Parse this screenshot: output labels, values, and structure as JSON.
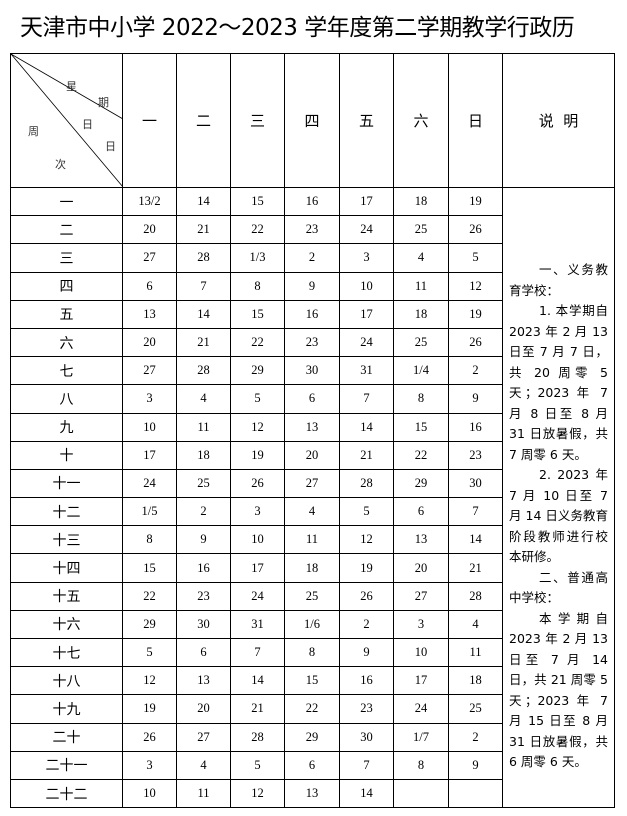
{
  "title": "天津市中小学 2022～2023 学年度第二学期教学行政历",
  "corner": {
    "top": [
      "星",
      "期"
    ],
    "middle": [
      "日",
      "日"
    ],
    "left": [
      "周",
      "次"
    ]
  },
  "weekdays": [
    "一",
    "二",
    "三",
    "四",
    "五",
    "六",
    "日"
  ],
  "notes_header": "说  明",
  "weeks": [
    {
      "label": "一",
      "days": [
        "13/2",
        "14",
        "15",
        "16",
        "17",
        "18",
        "19"
      ]
    },
    {
      "label": "二",
      "days": [
        "20",
        "21",
        "22",
        "23",
        "24",
        "25",
        "26"
      ]
    },
    {
      "label": "三",
      "days": [
        "27",
        "28",
        "1/3",
        "2",
        "3",
        "4",
        "5"
      ]
    },
    {
      "label": "四",
      "days": [
        "6",
        "7",
        "8",
        "9",
        "10",
        "11",
        "12"
      ]
    },
    {
      "label": "五",
      "days": [
        "13",
        "14",
        "15",
        "16",
        "17",
        "18",
        "19"
      ]
    },
    {
      "label": "六",
      "days": [
        "20",
        "21",
        "22",
        "23",
        "24",
        "25",
        "26"
      ]
    },
    {
      "label": "七",
      "days": [
        "27",
        "28",
        "29",
        "30",
        "31",
        "1/4",
        "2"
      ]
    },
    {
      "label": "八",
      "days": [
        "3",
        "4",
        "5",
        "6",
        "7",
        "8",
        "9"
      ]
    },
    {
      "label": "九",
      "days": [
        "10",
        "11",
        "12",
        "13",
        "14",
        "15",
        "16"
      ]
    },
    {
      "label": "十",
      "days": [
        "17",
        "18",
        "19",
        "20",
        "21",
        "22",
        "23"
      ]
    },
    {
      "label": "十一",
      "days": [
        "24",
        "25",
        "26",
        "27",
        "28",
        "29",
        "30"
      ]
    },
    {
      "label": "十二",
      "days": [
        "1/5",
        "2",
        "3",
        "4",
        "5",
        "6",
        "7"
      ]
    },
    {
      "label": "十三",
      "days": [
        "8",
        "9",
        "10",
        "11",
        "12",
        "13",
        "14"
      ]
    },
    {
      "label": "十四",
      "days": [
        "15",
        "16",
        "17",
        "18",
        "19",
        "20",
        "21"
      ]
    },
    {
      "label": "十五",
      "days": [
        "22",
        "23",
        "24",
        "25",
        "26",
        "27",
        "28"
      ]
    },
    {
      "label": "十六",
      "days": [
        "29",
        "30",
        "31",
        "1/6",
        "2",
        "3",
        "4"
      ]
    },
    {
      "label": "十七",
      "days": [
        "5",
        "6",
        "7",
        "8",
        "9",
        "10",
        "11"
      ]
    },
    {
      "label": "十八",
      "days": [
        "12",
        "13",
        "14",
        "15",
        "16",
        "17",
        "18"
      ]
    },
    {
      "label": "十九",
      "days": [
        "19",
        "20",
        "21",
        "22",
        "23",
        "24",
        "25"
      ]
    },
    {
      "label": "二十",
      "days": [
        "26",
        "27",
        "28",
        "29",
        "30",
        "1/7",
        "2"
      ]
    },
    {
      "label": "二十一",
      "days": [
        "3",
        "4",
        "5",
        "6",
        "7",
        "8",
        "9"
      ]
    },
    {
      "label": "二十二",
      "days": [
        "10",
        "11",
        "12",
        "13",
        "14",
        "",
        ""
      ]
    }
  ],
  "notes": [
    {
      "text": "一、义务教育学校：",
      "indent": true
    },
    {
      "text": "1. 本学期自 2023 年 2 月 13 日至 7 月 7 日，共 20 周零 5 天；2023 年 7 月 8 日至 8 月 31 日放暑假，共 7 周零 6 天。",
      "indent": true
    },
    {
      "text": "2. 2023 年 7 月 10 日至 7 月 14 日义务教育阶段教师进行校本研修。",
      "indent": true
    },
    {
      "text": "二、普通高中学校：",
      "indent": true
    },
    {
      "text": "本学期自 2023 年 2 月 13 日至 7 月 14 日，共 21 周零 5 天；2023 年 7 月 15 日至 8 月 31 日放暑假，共 6 周零 6 天。",
      "indent": true
    }
  ]
}
